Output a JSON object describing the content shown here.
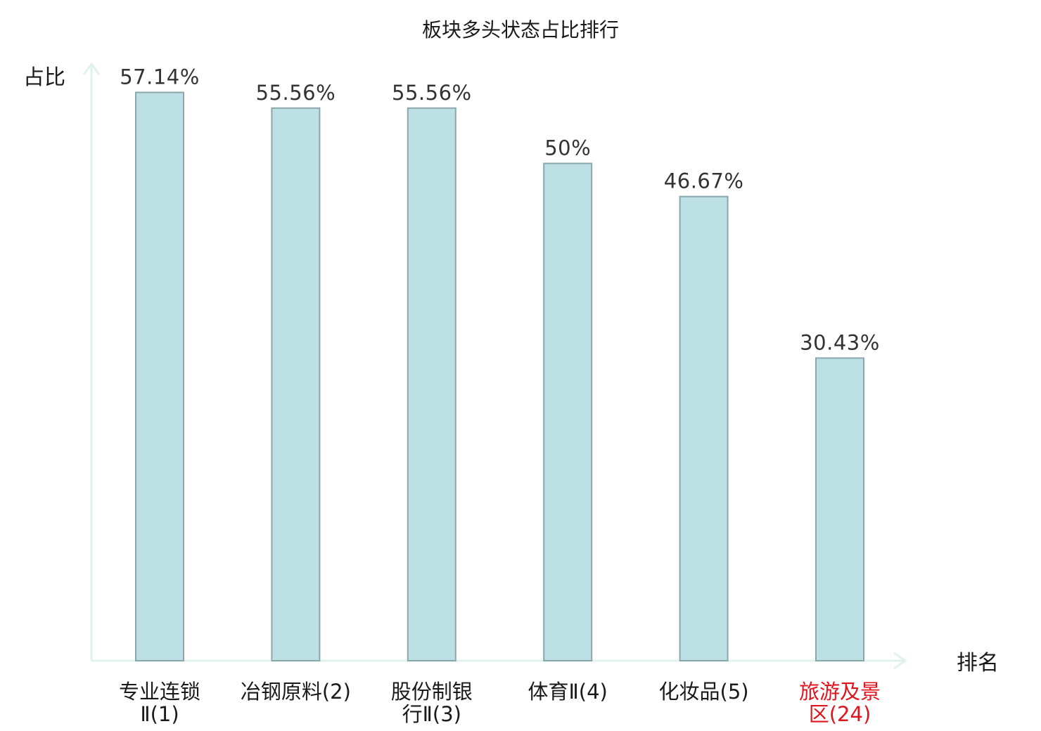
{
  "chart_data": {
    "type": "bar",
    "title": "板块多头状态占比排行",
    "ylabel": "占比",
    "xlabel": "排名",
    "ylim": [
      0,
      60
    ],
    "grid": false,
    "categories": [
      {
        "lines": [
          "专业连锁",
          "Ⅱ(1)"
        ]
      },
      {
        "lines": [
          "冶钢原料(2)"
        ]
      },
      {
        "lines": [
          "股份制银",
          "行Ⅱ(3)"
        ]
      },
      {
        "lines": [
          "体育Ⅱ(4)"
        ]
      },
      {
        "lines": [
          "化妆品(5)"
        ]
      },
      {
        "lines": [
          "旅游及景",
          "区(24)"
        ],
        "highlight": true
      }
    ],
    "values": [
      57.14,
      55.56,
      55.56,
      50,
      46.67,
      30.43
    ],
    "value_labels": [
      "57.14%",
      "55.56%",
      "55.56%",
      "50%",
      "46.67%",
      "30.43%"
    ],
    "colors": {
      "bar_fill": "#bce0e3",
      "bar_stroke": "#8aa8ab",
      "axis": "#e0f2f0",
      "label_text": "#1a1a1a",
      "highlight_text": "#e0141e"
    }
  }
}
